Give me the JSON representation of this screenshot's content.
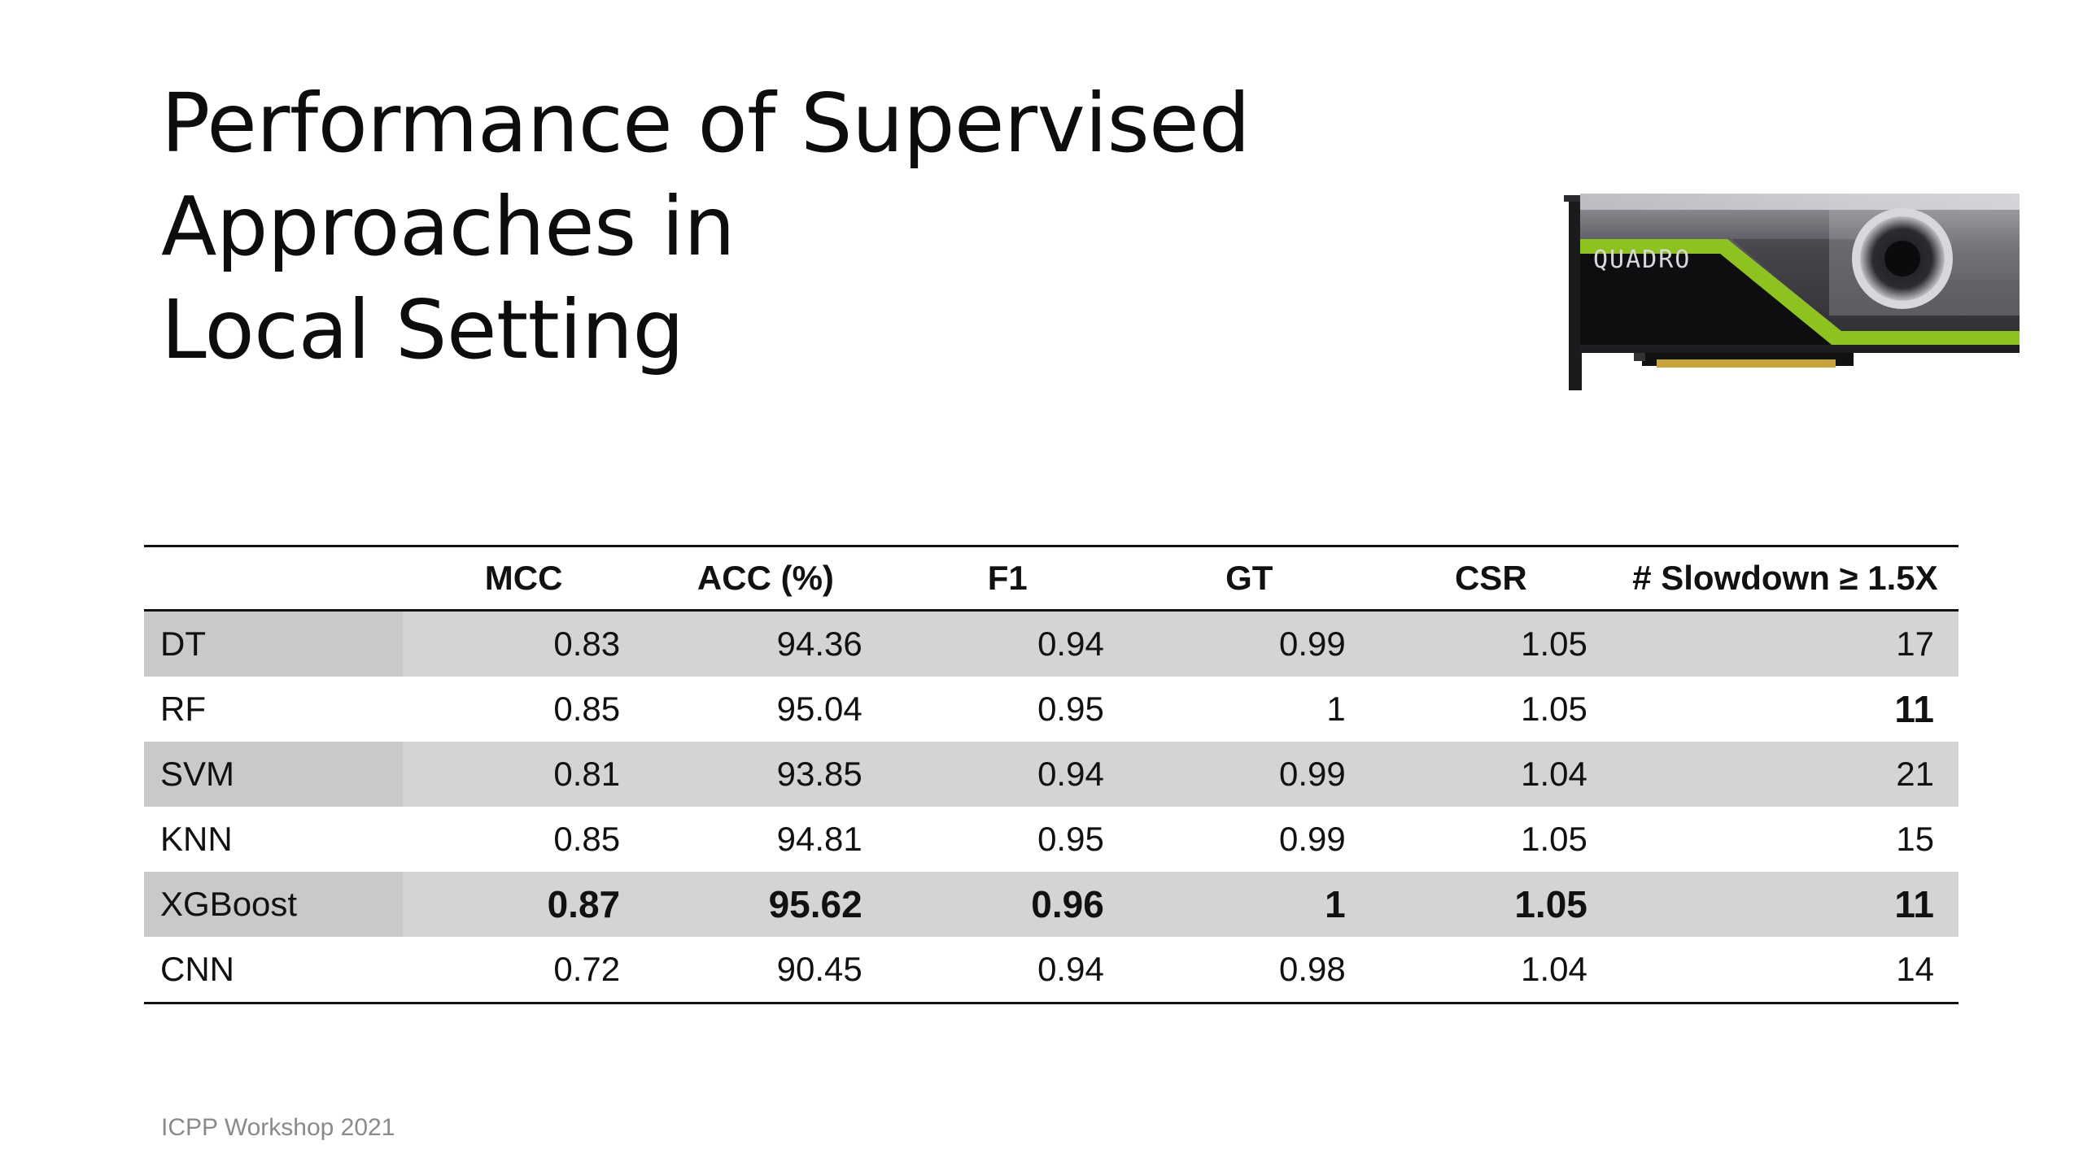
{
  "slide": {
    "title_line1": "Performance of Supervised Approaches in",
    "title_line2": "Local Setting",
    "footer": "ICPP Workshop 2021",
    "image_text": "QUADRO"
  },
  "table": {
    "headers": [
      "",
      "MCC",
      "ACC (%)",
      "F1",
      "GT",
      "CSR",
      "# Slowdown ≥ 1.5X"
    ],
    "rows": [
      {
        "name": "DT",
        "values": [
          "0.83",
          "94.36",
          "0.94",
          "0.99",
          "1.05",
          "17"
        ],
        "shaded": true,
        "bold": [
          false,
          false,
          false,
          false,
          false,
          false
        ]
      },
      {
        "name": "RF",
        "values": [
          "0.85",
          "95.04",
          "0.95",
          "1",
          "1.05",
          "11"
        ],
        "shaded": false,
        "bold": [
          false,
          false,
          false,
          false,
          false,
          true
        ]
      },
      {
        "name": "SVM",
        "values": [
          "0.81",
          "93.85",
          "0.94",
          "0.99",
          "1.04",
          "21"
        ],
        "shaded": true,
        "bold": [
          false,
          false,
          false,
          false,
          false,
          false
        ]
      },
      {
        "name": "KNN",
        "values": [
          "0.85",
          "94.81",
          "0.95",
          "0.99",
          "1.05",
          "15"
        ],
        "shaded": false,
        "bold": [
          false,
          false,
          false,
          false,
          false,
          false
        ]
      },
      {
        "name": "XGBoost",
        "values": [
          "0.87",
          "95.62",
          "0.96",
          "1",
          "1.05",
          "11"
        ],
        "shaded": true,
        "bold": [
          true,
          true,
          true,
          true,
          true,
          true
        ]
      },
      {
        "name": "CNN",
        "values": [
          "0.72",
          "90.45",
          "0.94",
          "0.98",
          "1.04",
          "14"
        ],
        "shaded": false,
        "bold": [
          false,
          false,
          false,
          false,
          false,
          false
        ]
      }
    ]
  },
  "colors": {
    "gpu_accent": "#8dc21f",
    "row_shade": "#d4d4d4"
  }
}
